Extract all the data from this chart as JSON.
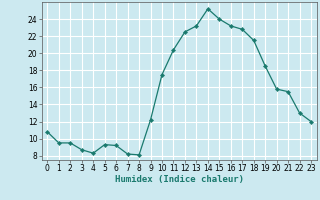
{
  "x": [
    0,
    1,
    2,
    3,
    4,
    5,
    6,
    7,
    8,
    9,
    10,
    11,
    12,
    13,
    14,
    15,
    16,
    17,
    18,
    19,
    20,
    21,
    22,
    23
  ],
  "y": [
    10.8,
    9.5,
    9.5,
    8.7,
    8.3,
    9.3,
    9.2,
    8.2,
    8.1,
    12.2,
    17.5,
    20.4,
    22.5,
    23.2,
    25.2,
    24.0,
    23.2,
    22.8,
    21.5,
    18.5,
    15.8,
    15.5,
    13.0,
    12.0
  ],
  "line_color": "#1a7a6e",
  "marker": "D",
  "marker_size": 2.2,
  "bg_color": "#cce9f0",
  "grid_color": "#ffffff",
  "xlabel": "Humidex (Indice chaleur)",
  "xlim": [
    -0.5,
    23.5
  ],
  "ylim": [
    7.5,
    26.0
  ],
  "yticks": [
    8,
    10,
    12,
    14,
    16,
    18,
    20,
    22,
    24
  ],
  "xticks": [
    0,
    1,
    2,
    3,
    4,
    5,
    6,
    7,
    8,
    9,
    10,
    11,
    12,
    13,
    14,
    15,
    16,
    17,
    18,
    19,
    20,
    21,
    22,
    23
  ],
  "tick_fontsize": 5.5,
  "xlabel_fontsize": 6.5
}
